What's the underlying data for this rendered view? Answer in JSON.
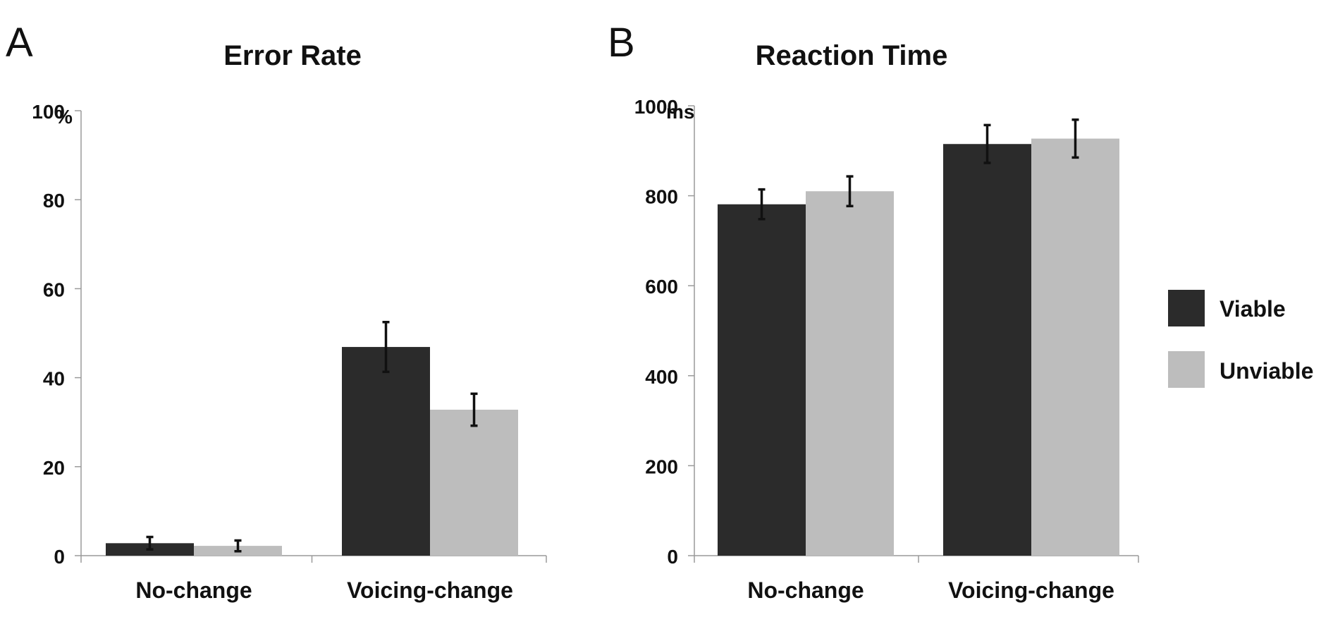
{
  "legend": [
    {
      "label": "Viable",
      "color": "#2b2b2b"
    },
    {
      "label": "Unviable",
      "color": "#bdbdbd"
    }
  ],
  "chart_data": [
    {
      "panel": "A",
      "type": "bar",
      "title": "Error Rate",
      "ylabel": "",
      "y_unit": "%",
      "ylim": [
        0,
        100
      ],
      "yticks": [
        0,
        20,
        40,
        60,
        80,
        100
      ],
      "grid": false,
      "categories": [
        "No-change",
        "Voicing-change"
      ],
      "series": [
        {
          "name": "Viable",
          "color": "#2b2b2b",
          "values": [
            2.8,
            46.9
          ],
          "errors": [
            1.4,
            5.6
          ]
        },
        {
          "name": "Unviable",
          "color": "#bdbdbd",
          "values": [
            2.2,
            32.8
          ],
          "errors": [
            1.2,
            3.6
          ]
        }
      ]
    },
    {
      "panel": "B",
      "type": "bar",
      "title": "Reaction Time",
      "ylabel": "",
      "y_unit": "ms",
      "ylim": [
        0,
        1000
      ],
      "yticks": [
        0,
        200,
        400,
        600,
        800,
        1000
      ],
      "grid": false,
      "categories": [
        "No-change",
        "Voicing-change"
      ],
      "series": [
        {
          "name": "Viable",
          "color": "#2b2b2b",
          "values": [
            781,
            915
          ],
          "errors": [
            33,
            42
          ]
        },
        {
          "name": "Unviable",
          "color": "#bdbdbd",
          "values": [
            810,
            927
          ],
          "errors": [
            33,
            42
          ]
        }
      ]
    }
  ]
}
